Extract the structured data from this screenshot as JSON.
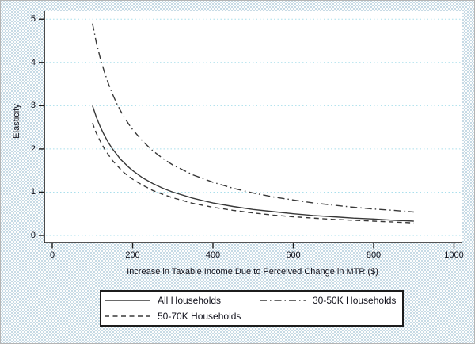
{
  "figure": {
    "ylabel": "Elasticity",
    "xlabel": "Increase in Taxable Income Due to Perceived Change in MTR ($)"
  },
  "chart_data": {
    "type": "line",
    "title": "",
    "xlabel": "Increase in Taxable Income Due to Perceived Change in MTR ($)",
    "ylabel": "Elasticity",
    "xlim": [
      0,
      1000
    ],
    "ylim": [
      0,
      5
    ],
    "xticks": [
      0,
      200,
      400,
      600,
      800,
      1000
    ],
    "yticks": [
      0,
      1,
      2,
      3,
      4,
      5
    ],
    "grid": "horizontal dotted gridlines at each y tick",
    "legend_position": "bottom, boxed, two columns",
    "x": [
      100,
      110,
      120,
      130,
      140,
      150,
      160,
      170,
      180,
      190,
      200,
      225,
      250,
      275,
      300,
      350,
      400,
      450,
      500,
      550,
      600,
      650,
      700,
      750,
      800,
      850,
      900
    ],
    "series": [
      {
        "name": "All Households",
        "style": "solid",
        "values": [
          3.0,
          2.73,
          2.5,
          2.31,
          2.14,
          2.0,
          1.88,
          1.76,
          1.67,
          1.58,
          1.5,
          1.33,
          1.2,
          1.09,
          1.0,
          0.86,
          0.75,
          0.67,
          0.6,
          0.55,
          0.5,
          0.46,
          0.43,
          0.4,
          0.38,
          0.35,
          0.33
        ]
      },
      {
        "name": "30-50K Households",
        "style": "dashdot",
        "values": [
          4.9,
          4.45,
          4.08,
          3.77,
          3.5,
          3.27,
          3.06,
          2.88,
          2.72,
          2.58,
          2.45,
          2.18,
          1.96,
          1.78,
          1.63,
          1.4,
          1.23,
          1.09,
          0.98,
          0.89,
          0.82,
          0.75,
          0.7,
          0.65,
          0.61,
          0.58,
          0.54
        ]
      },
      {
        "name": "50-70K Households",
        "style": "dashed",
        "values": [
          2.6,
          2.36,
          2.17,
          2.0,
          1.86,
          1.73,
          1.63,
          1.53,
          1.44,
          1.37,
          1.3,
          1.16,
          1.04,
          0.95,
          0.87,
          0.74,
          0.65,
          0.58,
          0.52,
          0.47,
          0.43,
          0.4,
          0.37,
          0.35,
          0.33,
          0.31,
          0.29
        ]
      }
    ],
    "legend": [
      "All Households",
      "30-50K Households",
      "50-70K Households"
    ]
  },
  "colors": {
    "curve": "#383838",
    "grid": "#aadfec",
    "axis": "#1c1c1c",
    "text": "#11111b",
    "plot_bg": "#ffffff",
    "outer_bg_dot": "#b4cedd"
  }
}
